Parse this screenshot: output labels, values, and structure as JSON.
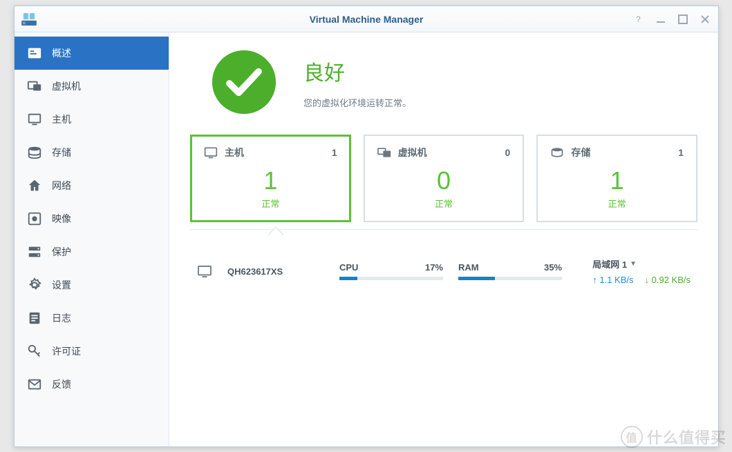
{
  "window": {
    "title": "Virtual Machine Manager"
  },
  "sidebar": {
    "items": [
      {
        "label": "概述"
      },
      {
        "label": "虚拟机"
      },
      {
        "label": "主机"
      },
      {
        "label": "存储"
      },
      {
        "label": "网络"
      },
      {
        "label": "映像"
      },
      {
        "label": "保护"
      },
      {
        "label": "设置"
      },
      {
        "label": "日志"
      },
      {
        "label": "许可证"
      },
      {
        "label": "反馈"
      }
    ]
  },
  "status": {
    "title": "良好",
    "subtitle": "您的虚拟化环境运转正常。",
    "color": "#4caf2c"
  },
  "cards": {
    "host": {
      "label": "主机",
      "count": "1",
      "big": "1",
      "status": "正常"
    },
    "vm": {
      "label": "虚拟机",
      "count": "0",
      "big": "0",
      "status": "正常"
    },
    "storage": {
      "label": "存储",
      "count": "1",
      "big": "1",
      "status": "正常"
    }
  },
  "detail": {
    "host_name": "QH623617XS",
    "cpu_label": "CPU",
    "cpu_value": "17%",
    "cpu_pct": 17,
    "ram_label": "RAM",
    "ram_value": "35%",
    "ram_pct": 35,
    "net_name": "局域网 1",
    "upload": "1.1 KB/s",
    "download": "0.92 KB/s"
  },
  "colors": {
    "accent_blue": "#2a72c3",
    "good_green": "#5bc236",
    "meter_blue": "#0d84d1"
  },
  "watermark": "什么值得买"
}
